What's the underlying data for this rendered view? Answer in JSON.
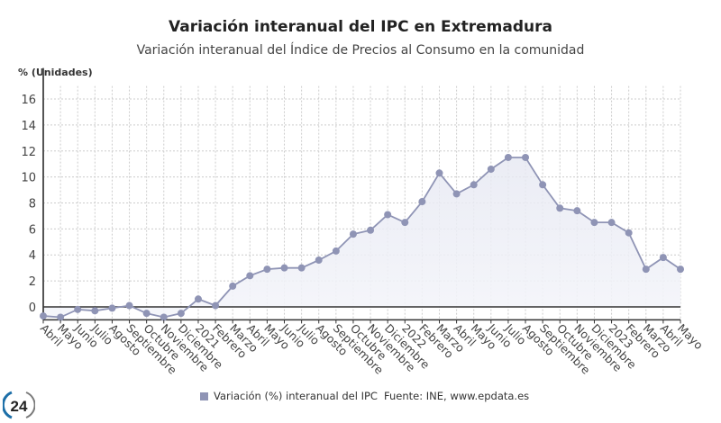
{
  "chart_data": {
    "type": "area",
    "title": "Variación interanual del IPC en Extremadura",
    "subtitle": "Variación interanual del Índice de Precios al Consumo en la comunidad",
    "ylabel": "% (Unidades)",
    "xlabel": "",
    "ylim": [
      -1,
      17
    ],
    "yticks": [
      0,
      2,
      4,
      6,
      8,
      10,
      12,
      14,
      16
    ],
    "grid": true,
    "legend_position": "bottom",
    "categories": [
      "Abril",
      "Mayo",
      "Junio",
      "Julio",
      "Agosto",
      "Septiembre",
      "Octubre",
      "Noviembre",
      "Diciembre",
      "2021",
      "Febrero",
      "Marzo",
      "Abril",
      "Mayo",
      "Junio",
      "Julio",
      "Agosto",
      "Septiembre",
      "Octubre",
      "Noviembre",
      "Diciembre",
      "2022",
      "Febrero",
      "Marzo",
      "Abril",
      "Mayo",
      "Junio",
      "Julio",
      "Agosto",
      "Septiembre",
      "Octubre",
      "Noviembre",
      "Diciembre",
      "2023",
      "Febrero",
      "Marzo",
      "Abril",
      "Mayo"
    ],
    "series": [
      {
        "name": "Variación (%) interanual del IPC",
        "color": "#8f94b5",
        "values": [
          -0.7,
          -0.8,
          -0.2,
          -0.3,
          -0.1,
          0.1,
          -0.5,
          -0.8,
          -0.5,
          0.6,
          0.1,
          1.6,
          2.4,
          2.9,
          3.0,
          3.0,
          3.6,
          4.3,
          5.6,
          5.9,
          7.1,
          6.5,
          8.1,
          10.3,
          8.7,
          9.4,
          10.6,
          11.5,
          11.5,
          9.4,
          7.6,
          7.4,
          6.5,
          6.5,
          5.7,
          2.9,
          3.8,
          2.9
        ]
      }
    ],
    "source": "Fuente: INE, www.epdata.es"
  },
  "logo_text": "24"
}
